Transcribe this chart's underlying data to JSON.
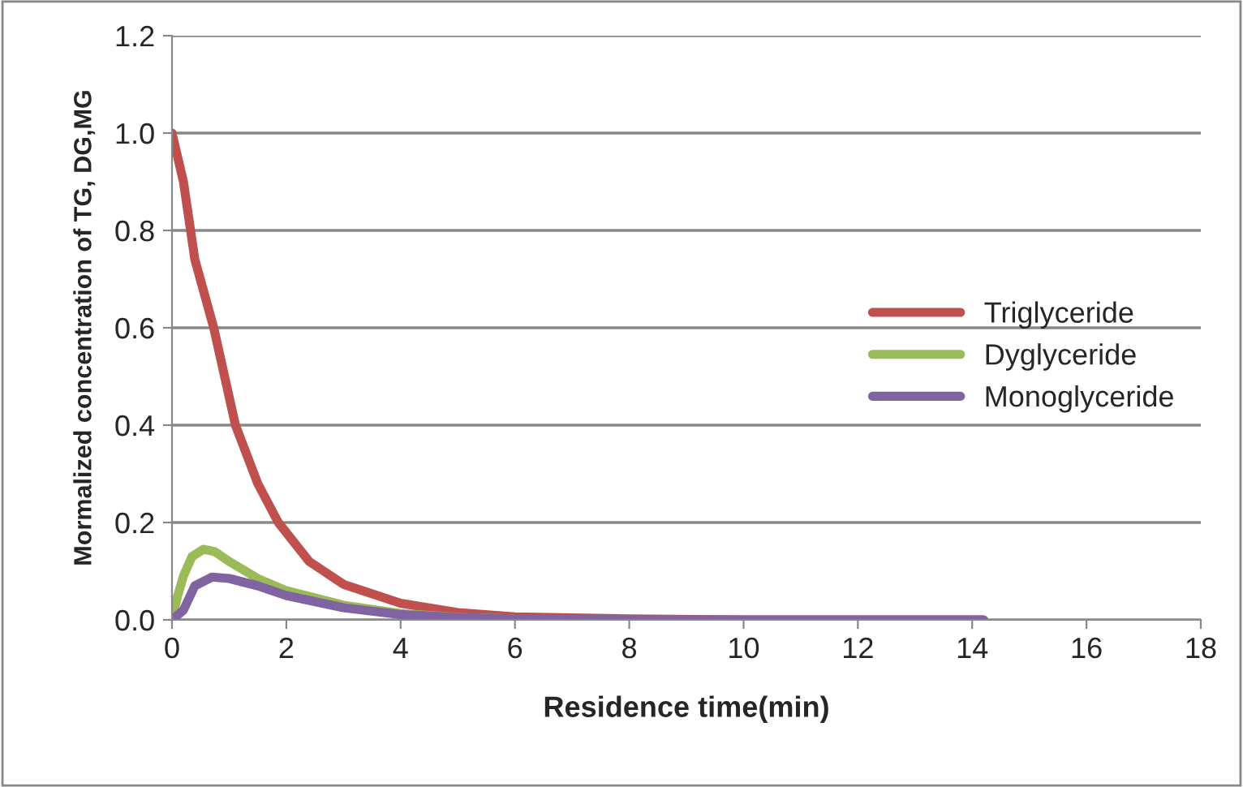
{
  "chart_data": {
    "type": "line",
    "xlabel": "Residence time(min)",
    "ylabel": "Mormalized concentration of TG, DG,MG",
    "xlim": [
      0,
      18
    ],
    "xticks": [
      0,
      2,
      4,
      6,
      8,
      10,
      12,
      14,
      16,
      18
    ],
    "ylim": [
      0,
      1.2
    ],
    "yticks": [
      {
        "value": 0,
        "label": "0.0"
      },
      0.2,
      0.4,
      0.6,
      0.8,
      {
        "value": 1,
        "label": "1.0"
      },
      1.2
    ],
    "grid": "y",
    "legend": "right",
    "marker": "none",
    "line_style": "solid",
    "series": [
      {
        "name": "Triglyceride",
        "color": "#c0504d",
        "x": [
          0,
          0.2,
          0.4,
          0.73,
          1.11,
          1.5,
          1.86,
          2.4,
          3,
          4,
          5,
          6,
          8,
          10,
          14.2
        ],
        "values": [
          1.0,
          0.9,
          0.74,
          0.6,
          0.4,
          0.28,
          0.2,
          0.12,
          0.073,
          0.034,
          0.015,
          0.006,
          0.002,
          0,
          0
        ]
      },
      {
        "name": "Dyglyceride",
        "color": "#9bbb59",
        "x": [
          0,
          0.1,
          0.2,
          0.35,
          0.55,
          0.75,
          1,
          1.5,
          2,
          3,
          4,
          5,
          6
        ],
        "values": [
          0,
          0.05,
          0.09,
          0.13,
          0.145,
          0.14,
          0.12,
          0.085,
          0.06,
          0.03,
          0.013,
          0.005,
          0.002
        ]
      },
      {
        "name": "Monoglyceride",
        "color": "#8064a2",
        "x": [
          0,
          0.2,
          0.4,
          0.7,
          1,
          1.5,
          2,
          3,
          4,
          5,
          6,
          8,
          14.2
        ],
        "values": [
          0,
          0.02,
          0.07,
          0.088,
          0.085,
          0.07,
          0.05,
          0.025,
          0.011,
          0.005,
          0.002,
          0,
          0
        ]
      }
    ]
  }
}
